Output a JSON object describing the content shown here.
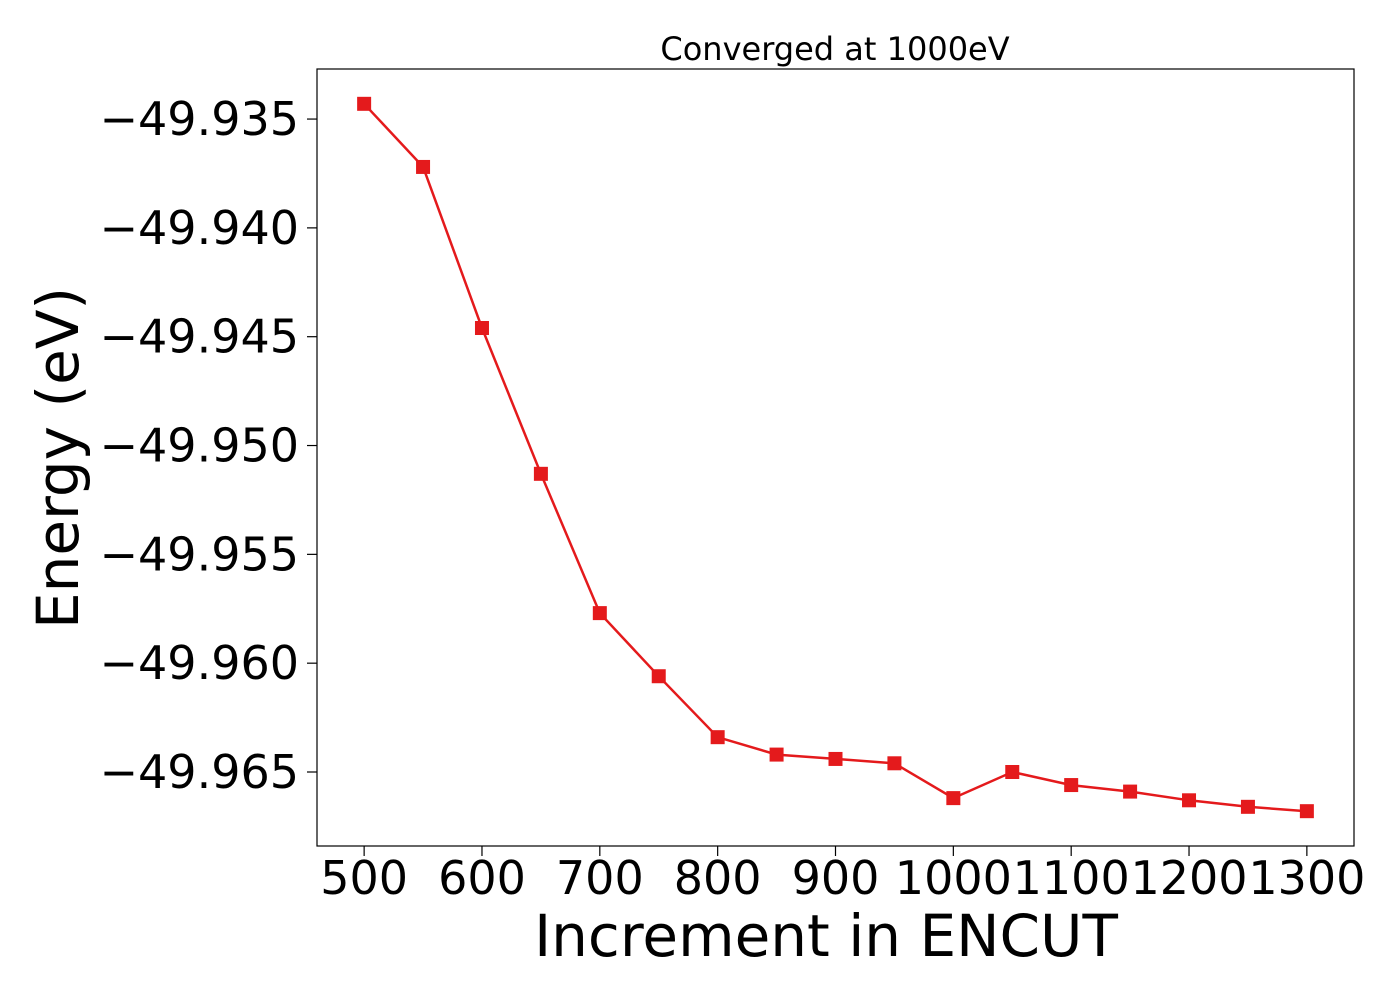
{
  "chart_data": {
    "type": "line",
    "title": "Converged at 1000eV",
    "xlabel": "Increment in ENCUT",
    "ylabel": "Energy (eV)",
    "xlim": [
      460,
      1340
    ],
    "ylim": [
      -49.9684,
      -49.9327
    ],
    "xticks": [
      500,
      600,
      700,
      800,
      900,
      1000,
      1100,
      1200,
      1300
    ],
    "xtick_labels": [
      "500",
      "600",
      "700",
      "800",
      "900",
      "1000",
      "1100",
      "1200",
      "1300"
    ],
    "yticks": [
      -49.935,
      -49.94,
      -49.945,
      -49.95,
      -49.955,
      -49.96,
      -49.965
    ],
    "ytick_labels": [
      "−49.935",
      "−49.940",
      "−49.945",
      "−49.950",
      "−49.955",
      "−49.960",
      "−49.965"
    ],
    "grid": false,
    "legend": "none",
    "series": [
      {
        "marker": "square",
        "color": "#e41a1c",
        "x": [
          500,
          550,
          600,
          650,
          700,
          750,
          800,
          850,
          900,
          950,
          1000,
          1050,
          1100,
          1150,
          1200,
          1250,
          1300
        ],
        "y": [
          -49.9343,
          -49.9372,
          -49.9446,
          -49.9513,
          -49.9577,
          -49.9606,
          -49.9634,
          -49.9642,
          -49.9644,
          -49.9646,
          -49.9662,
          -49.965,
          -49.9656,
          -49.9659,
          -49.9663,
          -49.9666,
          -49.9668
        ]
      }
    ]
  }
}
